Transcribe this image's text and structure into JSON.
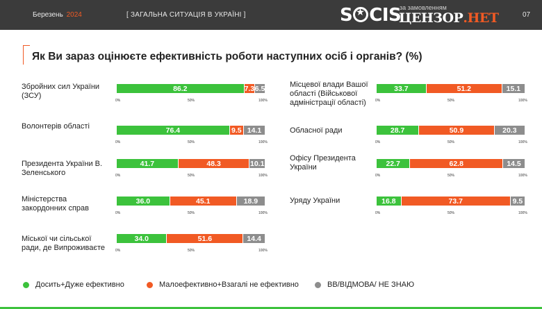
{
  "header": {
    "month": "Березень",
    "year": "2024",
    "section": "[ ЗАГАЛЬНА СИТУАЦІЯ В УКРАЇНІ ]",
    "logo": "SOCIS",
    "ordered_by": "за замовленням",
    "client_main": "ЦЕНЗОР",
    "client_suffix": ".НЕТ",
    "page_number": "07"
  },
  "question": "Як Ви зараз оцінюєте ефективність роботи наступних осіб і органів? (%)",
  "legend": {
    "positive": "Досить+Дуже ефективно",
    "negative": "Малоефективно+Взагалі не ефективно",
    "dont_know": "ВВ/ВІДМОВА/ НЕ ЗНАЮ"
  },
  "axis_ticks": [
    "0%",
    "50%",
    "100%"
  ],
  "colors": {
    "positive": "#3cc23c",
    "negative": "#f15a24",
    "dont_know": "#8d8d8d",
    "accent": "#f15a24"
  },
  "chart_data": {
    "type": "bar",
    "stacked": true,
    "orientation": "horizontal",
    "title": "Як Ви зараз оцінюєте ефективність роботи наступних осіб і органів? (%)",
    "xlim": [
      0,
      100
    ],
    "series_names": [
      "Досить+Дуже ефективно",
      "Малоефективно+Взагалі не ефективно",
      "ВВ/ВІДМОВА/ НЕ ЗНАЮ"
    ],
    "items": [
      {
        "label": "Збройних сил України (ЗСУ)",
        "values": [
          86.2,
          7.3,
          6.5
        ]
      },
      {
        "label": "Волонтерів області",
        "values": [
          76.4,
          9.5,
          14.1
        ]
      },
      {
        "label": "Президента України В. Зеленського",
        "values": [
          41.7,
          48.3,
          10.1
        ]
      },
      {
        "label": "Міністерства закордонних справ",
        "values": [
          36.0,
          45.1,
          18.9
        ]
      },
      {
        "label": "Міської чи сільської ради, де Випроживаєте",
        "values": [
          34.0,
          51.6,
          14.4
        ]
      },
      {
        "label": "Місцевої влади Вашої області (Військової адміністрації області)",
        "values": [
          33.7,
          51.2,
          15.1
        ]
      },
      {
        "label": "Обласної ради",
        "values": [
          28.7,
          50.9,
          20.3
        ]
      },
      {
        "label": "Офісу Президента України",
        "values": [
          22.7,
          62.8,
          14.5
        ]
      },
      {
        "label": "Уряду України",
        "values": [
          16.8,
          73.7,
          9.5
        ]
      }
    ]
  }
}
